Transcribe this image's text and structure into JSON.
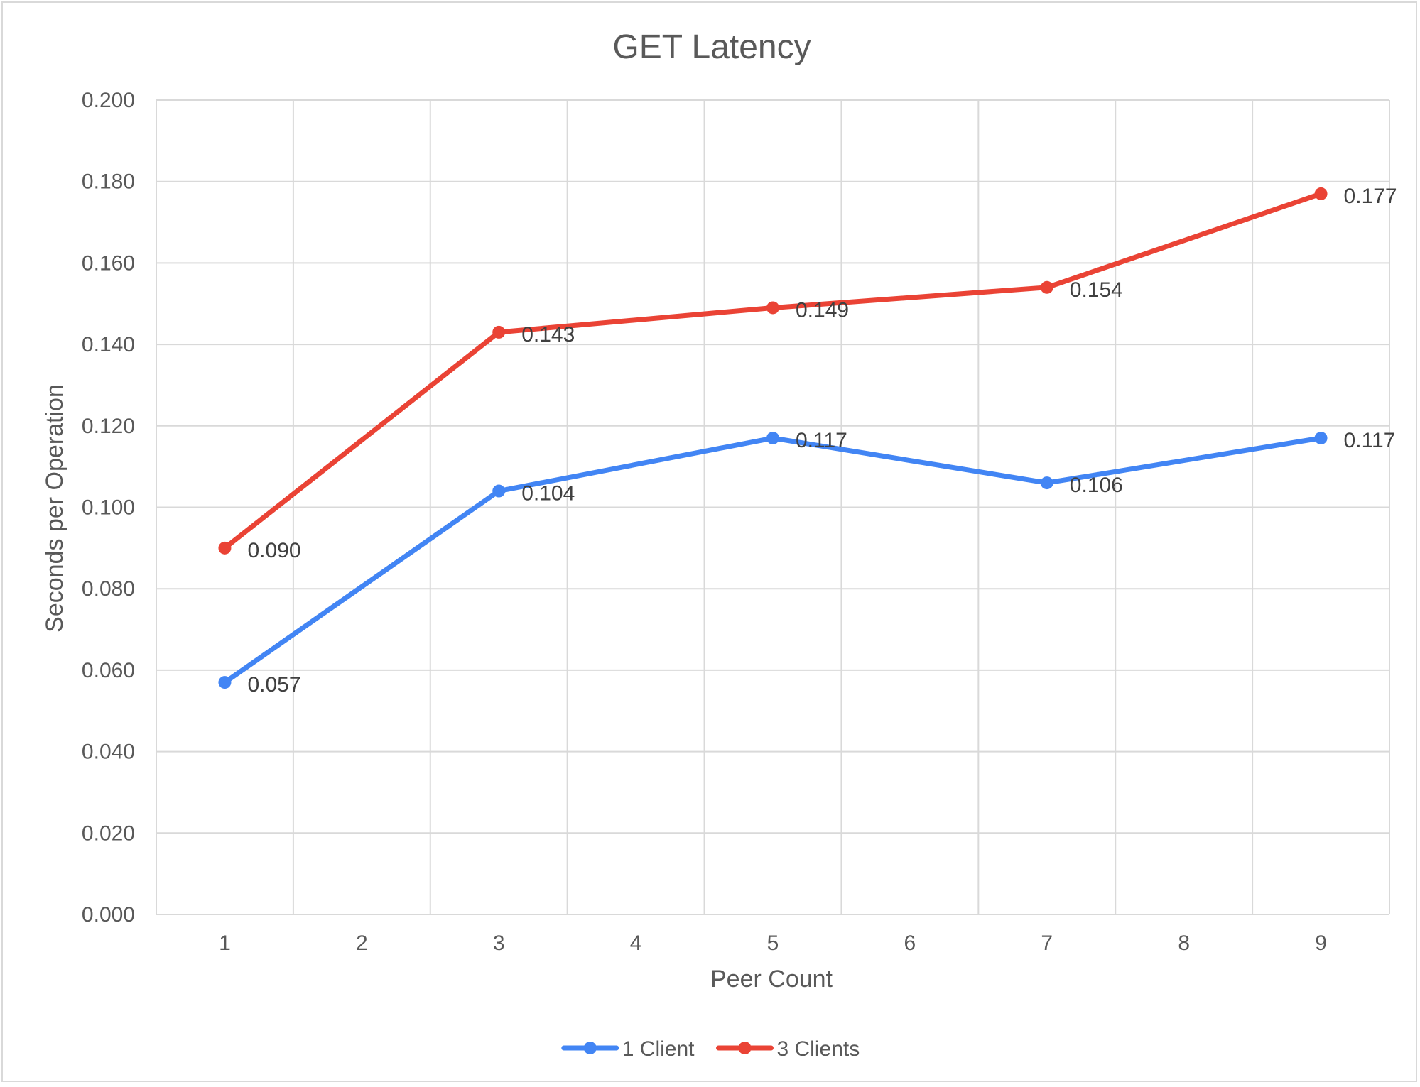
{
  "chart_data": {
    "type": "line",
    "title": "GET Latency",
    "xlabel": "Peer Count",
    "ylabel": "Seconds per Operation",
    "x_ticks": [
      "1",
      "2",
      "3",
      "4",
      "5",
      "6",
      "7",
      "8",
      "9"
    ],
    "xlim": [
      0.5,
      9.5
    ],
    "y_ticks": [
      "0.000",
      "0.020",
      "0.040",
      "0.060",
      "0.080",
      "0.100",
      "0.120",
      "0.140",
      "0.160",
      "0.180",
      "0.200"
    ],
    "ylim": [
      0,
      0.2
    ],
    "grid": true,
    "legend_position": "bottom",
    "series": [
      {
        "name": "1 Client",
        "color": "#4285f4",
        "x": [
          1,
          3,
          5,
          7,
          9
        ],
        "values": [
          0.057,
          0.104,
          0.117,
          0.106,
          0.117
        ],
        "labels": [
          "0.057",
          "0.104",
          "0.117",
          "0.106",
          "0.117"
        ]
      },
      {
        "name": "3 Clients",
        "color": "#ea4335",
        "x": [
          1,
          3,
          5,
          7,
          9
        ],
        "values": [
          0.09,
          0.143,
          0.149,
          0.154,
          0.177
        ],
        "labels": [
          "0.090",
          "0.143",
          "0.149",
          "0.154",
          "0.177"
        ]
      }
    ]
  }
}
